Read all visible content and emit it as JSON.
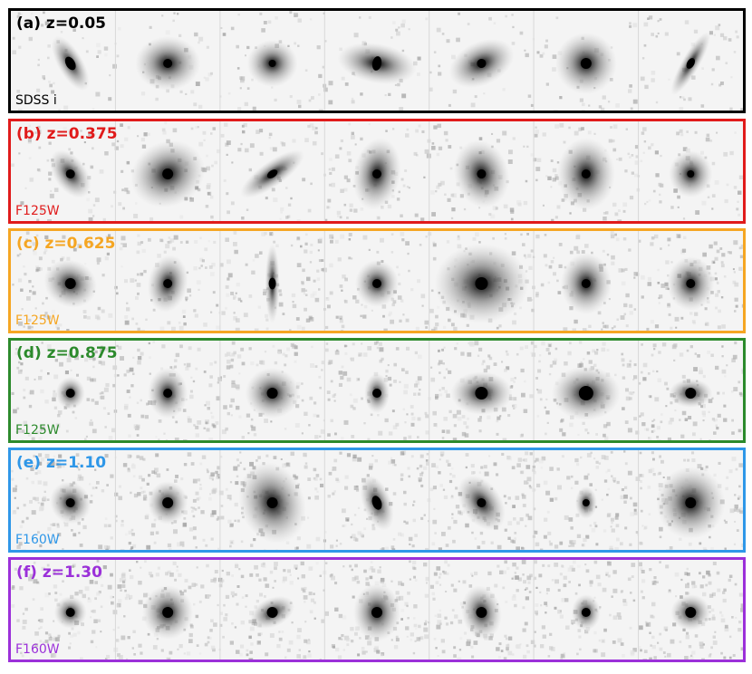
{
  "figure": {
    "rows": [
      {
        "label": "(a)  z=0.05",
        "filter": "SDSS i",
        "color": "#000000",
        "grain": 0.35,
        "galaxies": 7
      },
      {
        "label": "(b)  z=0.375",
        "filter": "F125W",
        "color": "#e01b1b",
        "grain": 0.55,
        "galaxies": 7
      },
      {
        "label": "(c)  z=0.625",
        "filter": "F125W",
        "color": "#f5a623",
        "grain": 0.75,
        "galaxies": 7
      },
      {
        "label": "(d)  z=0.875",
        "filter": "F125W",
        "color": "#2c8a2c",
        "grain": 0.85,
        "galaxies": 7
      },
      {
        "label": "(e)  z=1.10",
        "filter": "F160W",
        "color": "#2f97e8",
        "grain": 0.95,
        "galaxies": 7
      },
      {
        "label": "(f)  z=1.30",
        "filter": "F160W",
        "color": "#9b30d9",
        "grain": 1.0,
        "galaxies": 7
      }
    ]
  }
}
